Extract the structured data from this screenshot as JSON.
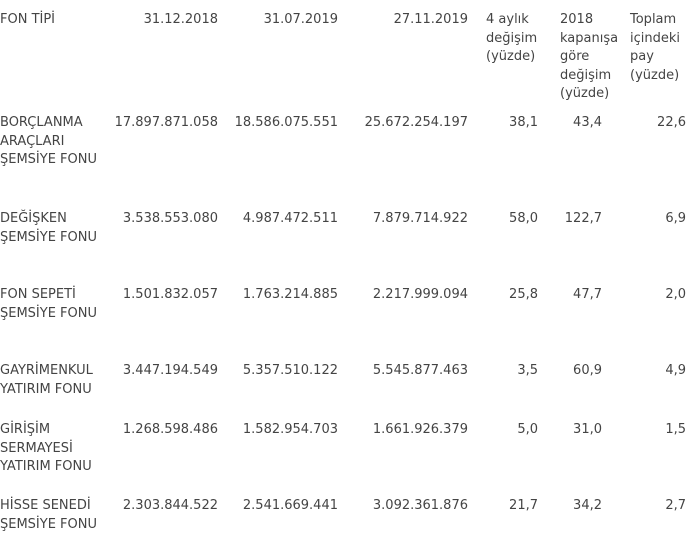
{
  "table": {
    "headers": [
      "FON TİPİ",
      "31.12.2018",
      "31.07.2019",
      "27.11.2019",
      "4 aylık değişim (yüzde)",
      "2018 kapanışa göre değişim (yüzde)",
      "Toplam içindeki pay (yüzde)"
    ],
    "rows": [
      [
        "BORÇLANMA ARAÇLARI ŞEMSİYE FONU",
        "17.897.871.058",
        "18.586.075.551",
        "25.672.254.197",
        "38,1",
        "43,4",
        "22,6"
      ],
      [
        "DEĞİŞKEN ŞEMSİYE FONU",
        "3.538.553.080",
        "4.987.472.511",
        "7.879.714.922",
        "58,0",
        "122,7",
        "6,9"
      ],
      [
        "FON SEPETİ ŞEMSİYE FONU",
        "1.501.832.057",
        "1.763.214.885",
        "2.217.999.094",
        "25,8",
        "47,7",
        "2,0"
      ],
      [
        "GAYRİMENKUL YATIRIM FONU",
        "3.447.194.549",
        "5.357.510.122",
        "5.545.877.463",
        "3,5",
        "60,9",
        "4,9"
      ],
      [
        "GİRİŞİM SERMAYESİ YATIRIM FONU",
        "1.268.598.486",
        "1.582.954.703",
        "1.661.926.379",
        "5,0",
        "31,0",
        "1,5"
      ],
      [
        "HİSSE SENEDİ ŞEMSİYE FONU",
        "2.303.844.522",
        "2.541.669.441",
        "3.092.361.876",
        "21,7",
        "34,2",
        "2,7"
      ]
    ]
  }
}
